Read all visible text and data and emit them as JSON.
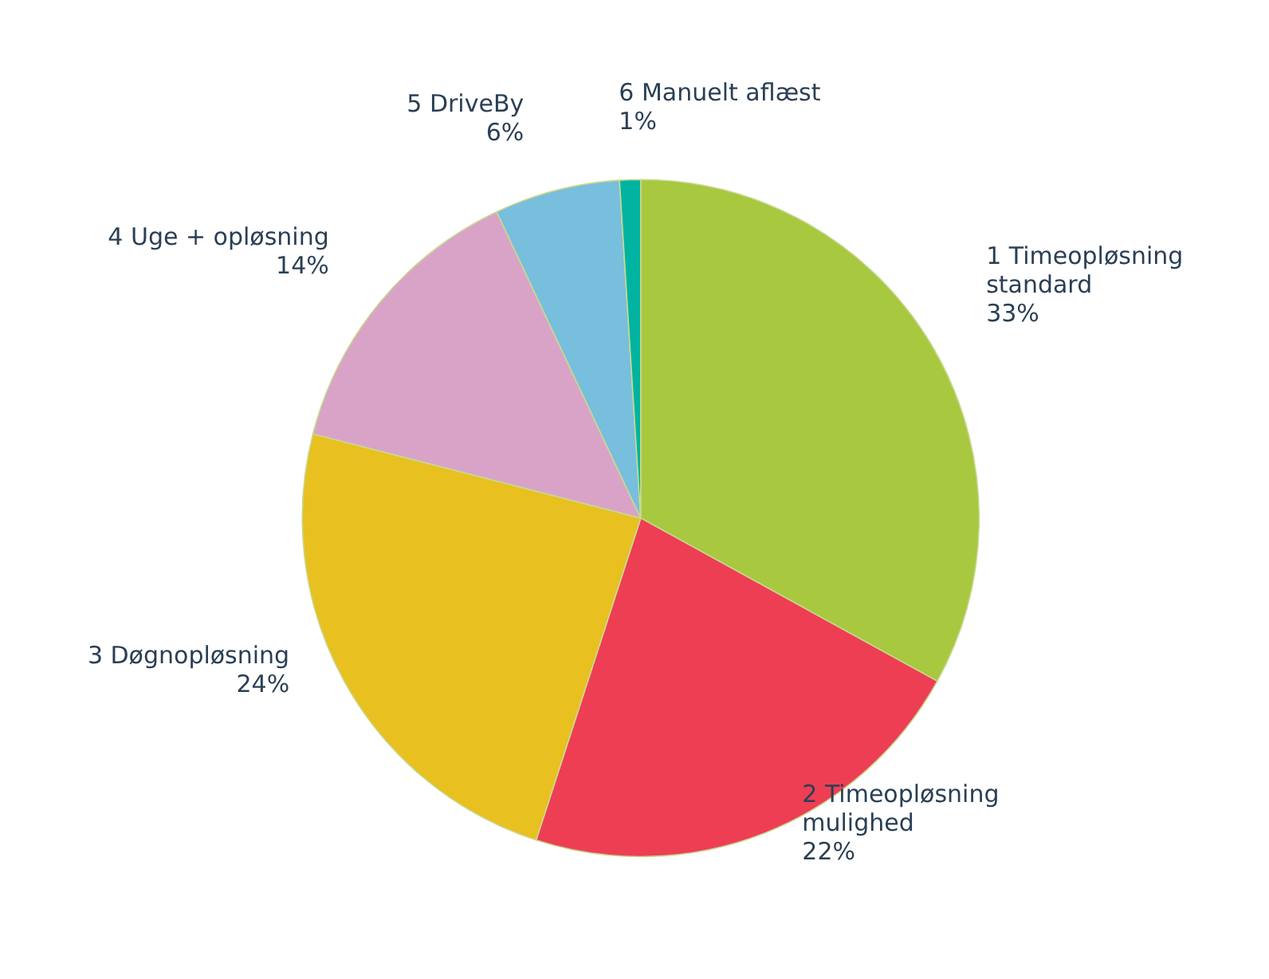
{
  "chart_data": {
    "type": "pie",
    "categories": [
      "1 Timeopløsning standard",
      "2 Timeopløsning mulighed",
      "3 Døgnopløsning",
      "4 Uge + opløsning",
      "5 DriveBy",
      "6 Manuelt aflæst"
    ],
    "values": [
      33,
      22,
      24,
      14,
      6,
      1
    ],
    "value_labels": [
      "33%",
      "22%",
      "24%",
      "14%",
      "6%",
      "1%"
    ],
    "colors": [
      "#a8c83f",
      "#ee3e54",
      "#e8c020",
      "#d9a3c8",
      "#78bedd",
      "#00b3a0"
    ],
    "legend": false
  }
}
